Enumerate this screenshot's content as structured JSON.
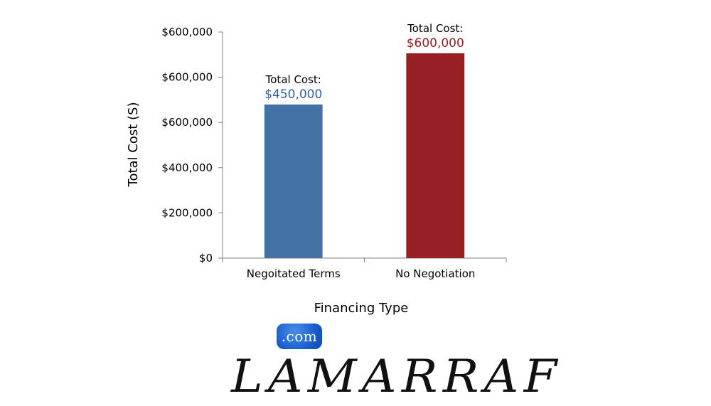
{
  "chart_data": {
    "type": "bar",
    "xlabel": "Financing Type",
    "ylabel": "Total Cost (S)",
    "categories": [
      "Negoitated Terms",
      "No Negotiation"
    ],
    "values": [
      450000,
      600000
    ],
    "ylim": [
      0,
      600000
    ],
    "ytick_labels": [
      "$0",
      "$200,000",
      "$400,000",
      "$600,000",
      "$600,000",
      "$600,000"
    ],
    "bar_colors": [
      "#4472a7",
      "#972024"
    ],
    "data_labels": [
      {
        "line1": "Total Cost:",
        "line2": "$450,000",
        "color": "#2f65a2"
      },
      {
        "line1": "Total Cost:",
        "line2": "$600,000",
        "color": "#9a1c1f"
      }
    ],
    "grid": false,
    "legend": "none"
  },
  "logo": {
    "badge": ".com",
    "wordmark": "LAMARRAF"
  }
}
